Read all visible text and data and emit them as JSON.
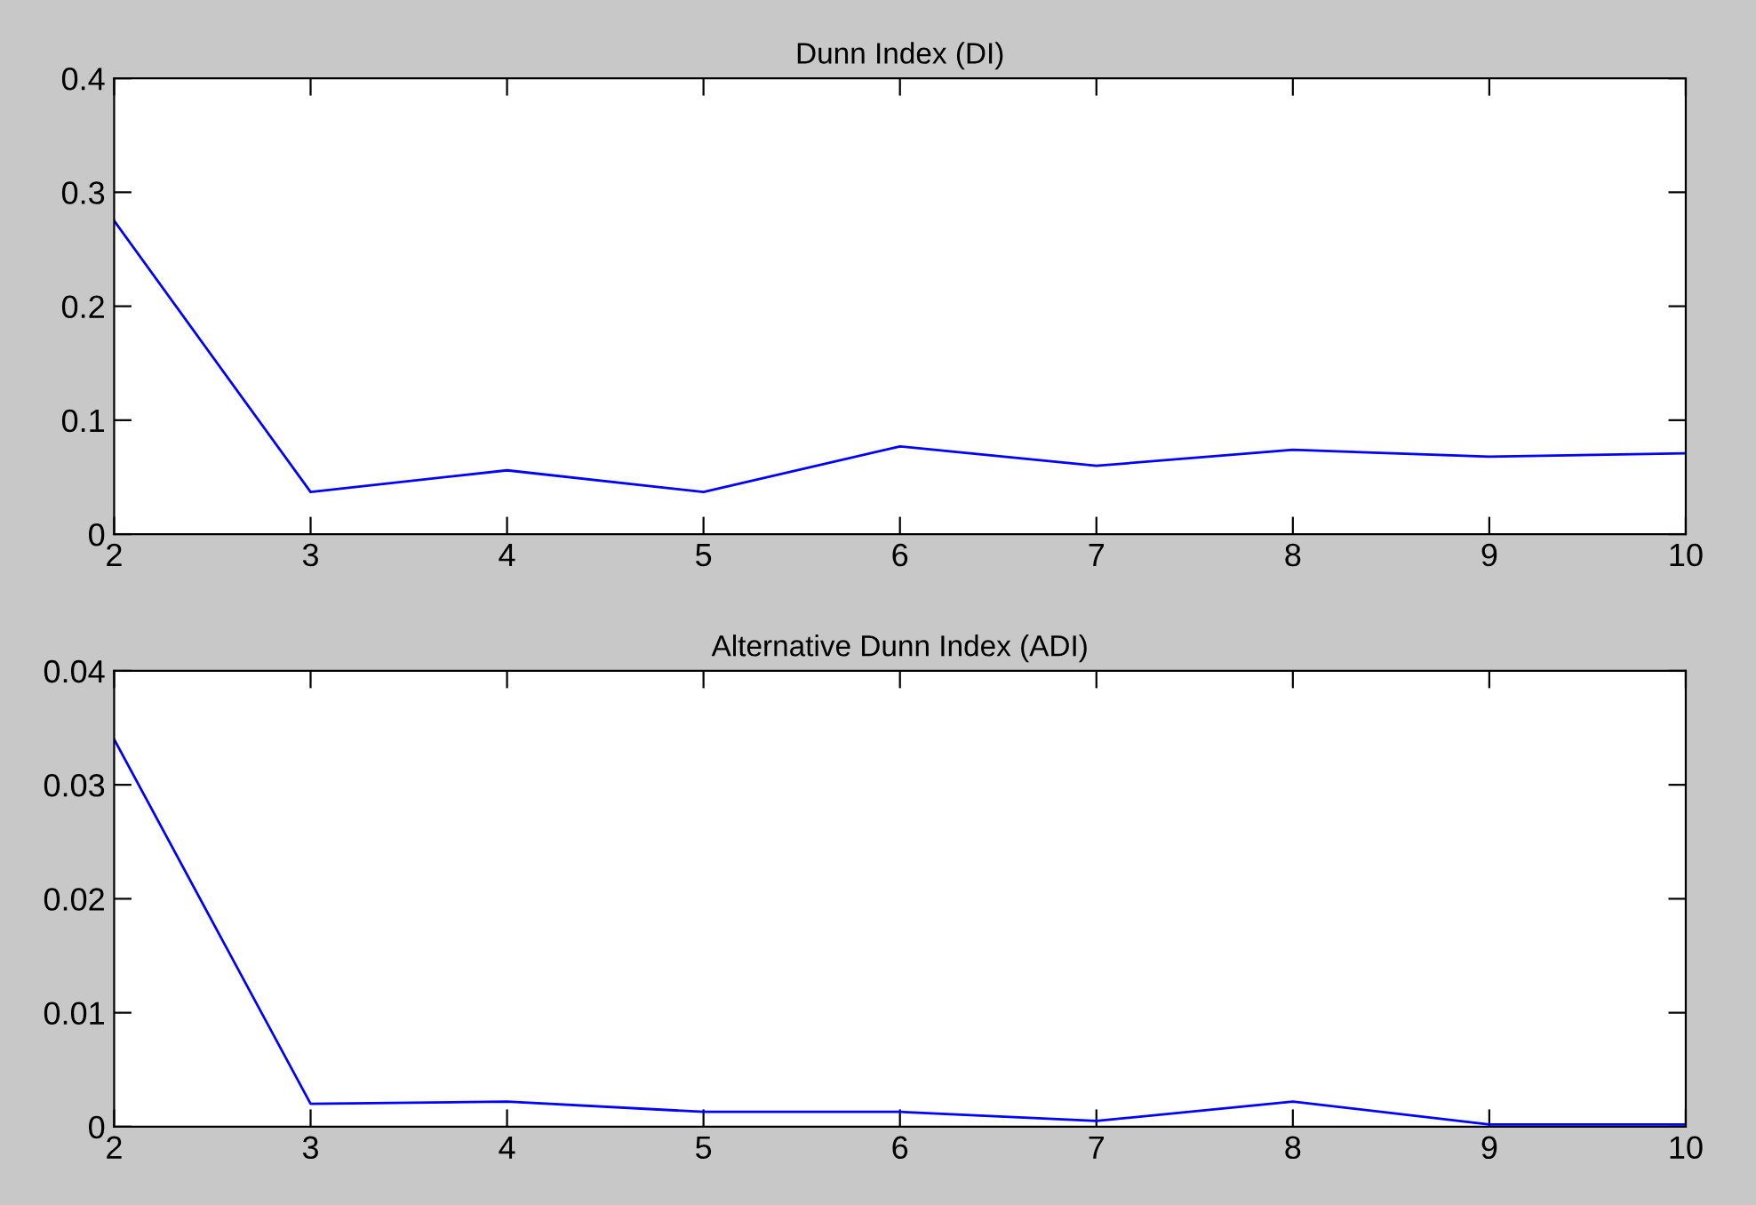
{
  "chart_data": [
    {
      "type": "line",
      "title": "Dunn Index (DI)",
      "x": [
        2,
        3,
        4,
        5,
        6,
        7,
        8,
        9,
        10
      ],
      "series": [
        {
          "color": "#0000ff",
          "values": [
            0.275,
            0.037,
            0.056,
            0.037,
            0.077,
            0.06,
            0.074,
            0.068,
            0.071
          ]
        }
      ],
      "xlim": [
        2,
        10
      ],
      "xticks": [
        2,
        3,
        4,
        5,
        6,
        7,
        8,
        9,
        10
      ],
      "ylim": [
        0,
        0.4
      ],
      "yticks": [
        0,
        0.1,
        0.2,
        0.3,
        0.4
      ],
      "marker": "none",
      "line_style": "solid"
    },
    {
      "type": "line",
      "title": "Alternative Dunn Index (ADI)",
      "x": [
        2,
        3,
        4,
        5,
        6,
        7,
        8,
        9,
        10
      ],
      "series": [
        {
          "color": "#0000ff",
          "values": [
            0.034,
            0.002,
            0.0022,
            0.0013,
            0.0013,
            0.0005,
            0.0022,
            0.0002,
            0.0002
          ]
        }
      ],
      "xlim": [
        2,
        10
      ],
      "xticks": [
        2,
        3,
        4,
        5,
        6,
        7,
        8,
        9,
        10
      ],
      "ylim": [
        0,
        0.04
      ],
      "yticks": [
        0,
        0.01,
        0.02,
        0.03,
        0.04
      ],
      "marker": "none",
      "line_style": "solid"
    }
  ]
}
